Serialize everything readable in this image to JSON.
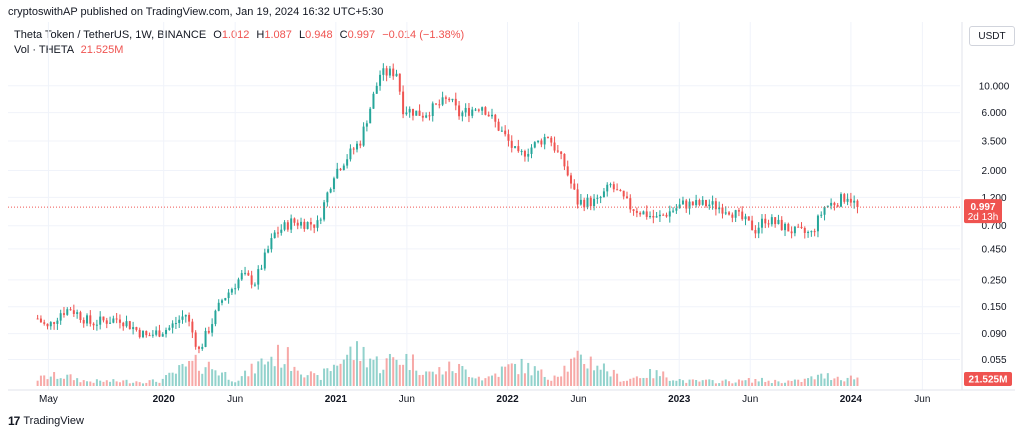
{
  "attribution": "cryptoswithAP published on TradingView.com, Jan 19, 2024 16:32 UTC+5:30",
  "legend": {
    "symbol": "Theta Token / TetherUS, 1W, BINANCE",
    "o_label": "O",
    "o": "1.012",
    "h_label": "H",
    "h": "1.087",
    "l_label": "L",
    "l": "0.948",
    "c_label": "C",
    "c": "0.997",
    "change": "−0.014 (−1.38%)",
    "vol_label": "Vol · THETA",
    "vol": "21.525M"
  },
  "currency": "USDT",
  "footer": {
    "brand": "TradingView",
    "logo": "17"
  },
  "colors": {
    "up": "#26a69a",
    "down": "#ef5350",
    "price_line": "#ef5350"
  },
  "chart_data": {
    "type": "candlestick",
    "scale": "log",
    "y_range": [
      0.032,
      30
    ],
    "y_ticks": [
      "10.000",
      "6.000",
      "3.500",
      "2.000",
      "1.200",
      "0.700",
      "0.450",
      "0.250",
      "0.150",
      "0.090",
      "0.055"
    ],
    "x_ticks": [
      "May",
      "2020",
      "Jun",
      "2021",
      "Jun",
      "2022",
      "Jun",
      "2023",
      "Jun",
      "2024",
      "Jun"
    ],
    "last_price": "0.997",
    "countdown": "2d 13h",
    "volume_label": "21.525M",
    "anchors": [
      [
        "2019-04-08",
        0.12
      ],
      [
        "2019-04-29",
        0.1
      ],
      [
        "2019-05-27",
        0.135
      ],
      [
        "2019-06-17",
        0.145
      ],
      [
        "2019-07-29",
        0.11
      ],
      [
        "2019-09-30",
        0.12
      ],
      [
        "2019-11-25",
        0.085
      ],
      [
        "2020-01-13",
        0.1
      ],
      [
        "2020-02-17",
        0.13
      ],
      [
        "2020-03-16",
        0.065
      ],
      [
        "2020-05-04",
        0.17
      ],
      [
        "2020-06-15",
        0.27
      ],
      [
        "2020-07-13",
        0.24
      ],
      [
        "2020-08-24",
        0.6
      ],
      [
        "2020-09-28",
        0.75
      ],
      [
        "2020-11-23",
        0.72
      ],
      [
        "2020-12-28",
        1.9
      ],
      [
        "2021-02-22",
        3.5
      ],
      [
        "2021-04-05",
        12.5
      ],
      [
        "2021-05-10",
        13.0
      ],
      [
        "2021-05-24",
        6.5
      ],
      [
        "2021-07-05",
        5.8
      ],
      [
        "2021-08-30",
        7.8
      ],
      [
        "2021-09-20",
        5.8
      ],
      [
        "2021-11-08",
        6.9
      ],
      [
        "2021-12-27",
        3.8
      ],
      [
        "2022-01-24",
        2.6
      ],
      [
        "2022-03-28",
        3.9
      ],
      [
        "2022-05-02",
        2.2
      ],
      [
        "2022-05-30",
        1.1
      ],
      [
        "2022-07-11",
        1.1
      ],
      [
        "2022-08-08",
        1.5
      ],
      [
        "2022-09-19",
        1.0
      ],
      [
        "2022-11-14",
        0.8
      ],
      [
        "2023-01-09",
        1.05
      ],
      [
        "2023-03-06",
        1.05
      ],
      [
        "2023-04-17",
        0.95
      ],
      [
        "2023-06-12",
        0.65
      ],
      [
        "2023-07-03",
        0.8
      ],
      [
        "2023-09-04",
        0.62
      ],
      [
        "2023-10-09",
        0.6
      ],
      [
        "2023-11-06",
        1.0
      ],
      [
        "2023-12-11",
        1.15
      ],
      [
        "2023-12-25",
        1.25
      ],
      [
        "2024-01-15",
        0.997
      ]
    ],
    "volume_peaks": [
      [
        "2019-05-20",
        0.25
      ],
      [
        "2020-03-16",
        0.55
      ],
      [
        "2020-08-31",
        0.75
      ],
      [
        "2021-02-15",
        0.85
      ],
      [
        "2021-05-17",
        0.7
      ],
      [
        "2021-09-06",
        0.45
      ],
      [
        "2022-01-24",
        0.5
      ],
      [
        "2022-06-13",
        0.65
      ],
      [
        "2022-11-07",
        0.3
      ],
      [
        "2023-06-12",
        0.15
      ],
      [
        "2023-11-13",
        0.25
      ],
      [
        "2024-01-15",
        0.22
      ]
    ]
  }
}
